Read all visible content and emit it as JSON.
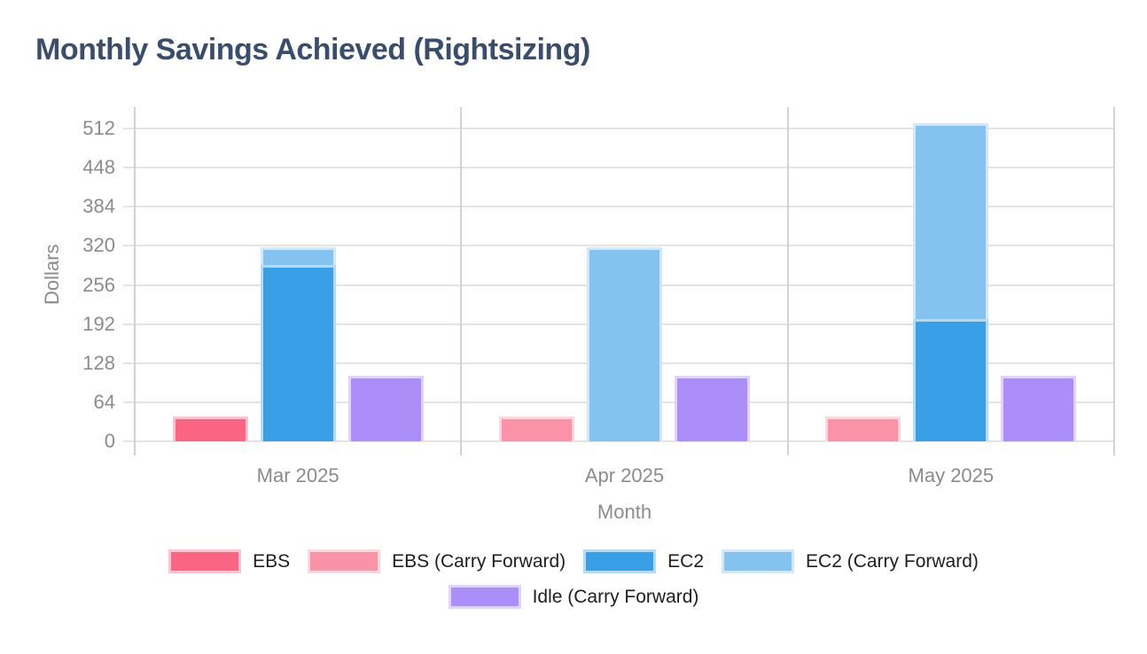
{
  "chart_data": {
    "type": "bar",
    "title": "Monthly Savings Achieved (Rightsizing)",
    "xlabel": "Month",
    "ylabel": "Dollars",
    "categories": [
      "Mar 2025",
      "Apr 2025",
      "May 2025"
    ],
    "yticks": [
      0,
      64,
      128,
      192,
      256,
      320,
      384,
      448,
      512
    ],
    "ylim": [
      0,
      547
    ],
    "grid": true,
    "facet_separators": true,
    "legend_position": "bottom",
    "series": [
      {
        "name": "EBS",
        "color": "#F96583",
        "slot": 0,
        "values": [
          40,
          0,
          0
        ]
      },
      {
        "name": "EBS (Carry Forward)",
        "color": "#FA93A7",
        "slot": 0,
        "values": [
          0,
          40,
          40
        ]
      },
      {
        "name": "EC2",
        "color": "#39A0E8",
        "slot": 1,
        "values": [
          288,
          0,
          200
        ]
      },
      {
        "name": "EC2 (Carry Forward)",
        "color": "#84C2EF",
        "slot": 1,
        "values": [
          30,
          318,
          320
        ]
      },
      {
        "name": "Idle (Carry Forward)",
        "color": "#AC8EF8",
        "slot": 2,
        "values": [
          107,
          107,
          107
        ]
      }
    ],
    "colors": {
      "title": "#3A4E6C",
      "axis_text": "#8B8B8B",
      "grid": "#E4E4E4",
      "axis_line": "#D2D2D2",
      "legend_text": "#1E1E1E"
    }
  }
}
